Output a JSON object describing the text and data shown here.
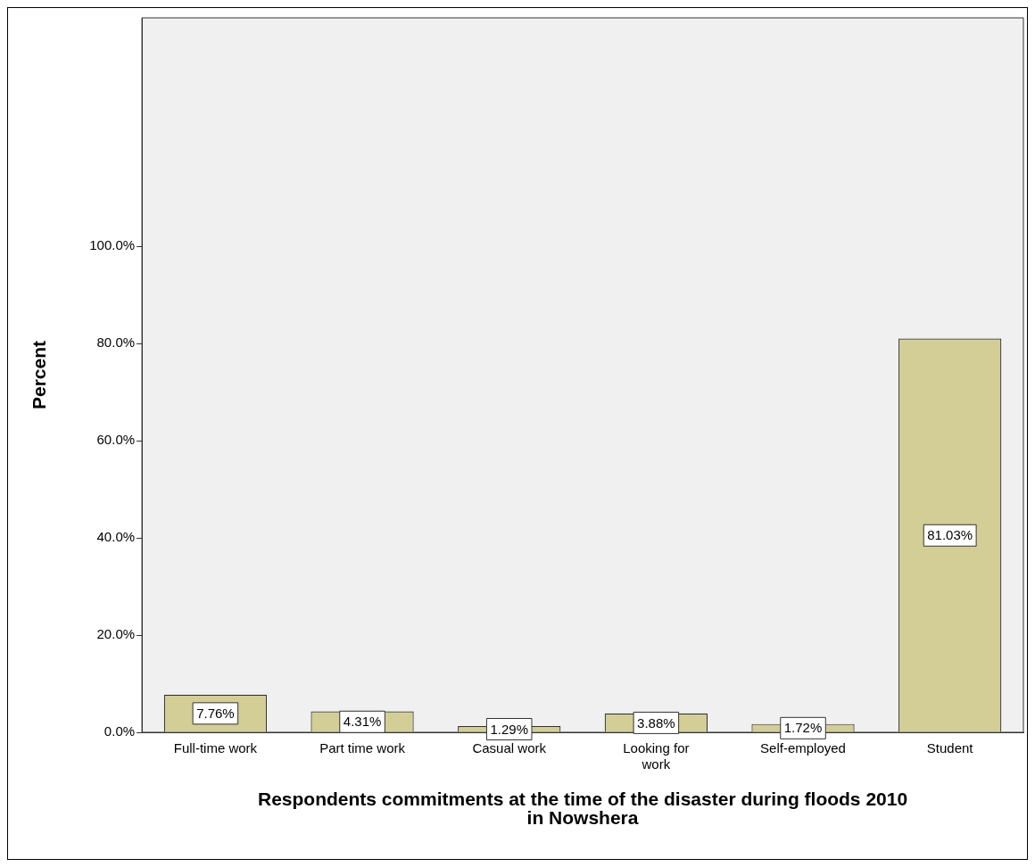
{
  "chart_data": {
    "type": "bar",
    "xlabel": "Respondents commitments at the time of the disaster during floods 2010\nin Nowshera",
    "ylabel": "Percent",
    "categories": [
      "Full-time work",
      "Part time work",
      "Casual work",
      "Looking for work",
      "Self-employed",
      "Student"
    ],
    "values": [
      7.76,
      4.31,
      1.29,
      3.88,
      1.72,
      81.03
    ],
    "value_labels": [
      "7.76%",
      "4.31%",
      "1.29%",
      "3.88%",
      "1.72%",
      "81.03%"
    ],
    "color": "#d3ce96",
    "ylim": [
      0,
      147
    ],
    "yticks": [
      {
        "value": 0,
        "label": "0.0%"
      },
      {
        "value": 20,
        "label": "20.0%"
      },
      {
        "value": 40,
        "label": "40.0%"
      },
      {
        "value": 60,
        "label": "60.0%"
      },
      {
        "value": 80,
        "label": "80.0%"
      },
      {
        "value": 100,
        "label": "100.0%"
      }
    ],
    "grid": false,
    "legend": false
  }
}
